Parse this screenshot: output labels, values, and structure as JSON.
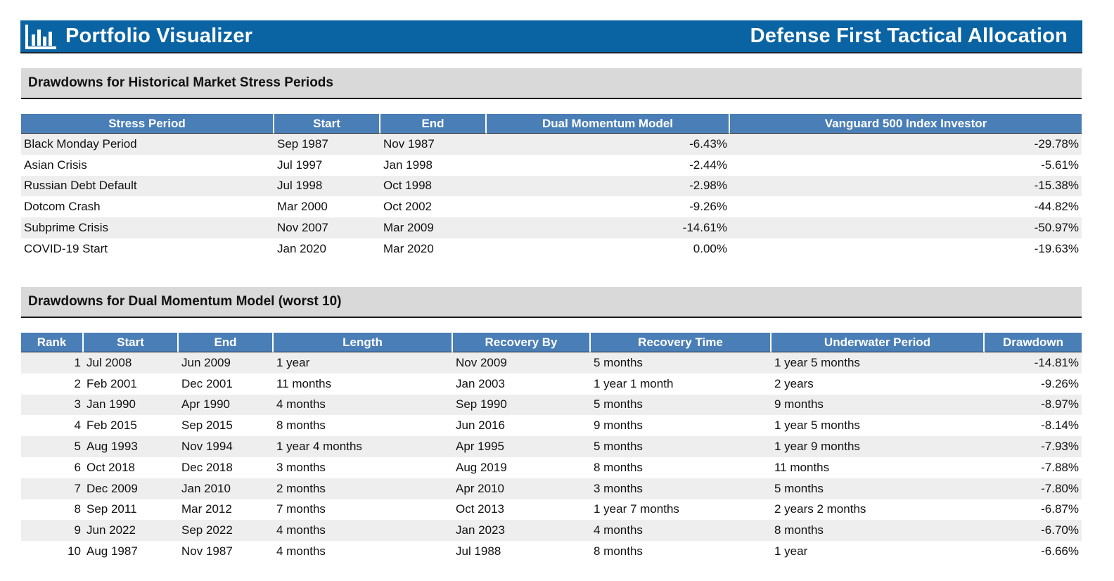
{
  "header": {
    "app_title": "Portfolio Visualizer",
    "page_title": "Defense First Tactical Allocation",
    "logo_icon": "bar-chart-icon",
    "brand_color": "#0a64a4"
  },
  "stress": {
    "heading": "Drawdowns for Historical Market Stress Periods",
    "columns": [
      "Stress Period",
      "Start",
      "End",
      "Dual Momentum Model",
      "Vanguard 500 Index Investor"
    ],
    "rows": [
      [
        "Black Monday Period",
        "Sep 1987",
        "Nov 1987",
        "-6.43%",
        "-29.78%"
      ],
      [
        "Asian Crisis",
        "Jul 1997",
        "Jan 1998",
        "-2.44%",
        "-5.61%"
      ],
      [
        "Russian Debt Default",
        "Jul 1998",
        "Oct 1998",
        "-2.98%",
        "-15.38%"
      ],
      [
        "Dotcom Crash",
        "Mar 2000",
        "Oct 2002",
        "-9.26%",
        "-44.82%"
      ],
      [
        "Subprime Crisis",
        "Nov 2007",
        "Mar 2009",
        "-14.61%",
        "-50.97%"
      ],
      [
        "COVID-19 Start",
        "Jan 2020",
        "Mar 2020",
        "0.00%",
        "-19.63%"
      ]
    ]
  },
  "drawdowns": {
    "heading": "Drawdowns for Dual Momentum Model (worst 10)",
    "columns": [
      "Rank",
      "Start",
      "End",
      "Length",
      "Recovery By",
      "Recovery Time",
      "Underwater Period",
      "Drawdown"
    ],
    "rows": [
      [
        "1",
        "Jul 2008",
        "Jun 2009",
        "1 year",
        "Nov 2009",
        "5 months",
        "1 year 5 months",
        "-14.81%"
      ],
      [
        "2",
        "Feb 2001",
        "Dec 2001",
        "11 months",
        "Jan 2003",
        "1 year 1 month",
        "2 years",
        "-9.26%"
      ],
      [
        "3",
        "Jan 1990",
        "Apr 1990",
        "4 months",
        "Sep 1990",
        "5 months",
        "9 months",
        "-8.97%"
      ],
      [
        "4",
        "Feb 2015",
        "Sep 2015",
        "8 months",
        "Jun 2016",
        "9 months",
        "1 year 5 months",
        "-8.14%"
      ],
      [
        "5",
        "Aug 1993",
        "Nov 1994",
        "1 year 4 months",
        "Apr 1995",
        "5 months",
        "1 year 9 months",
        "-7.93%"
      ],
      [
        "6",
        "Oct 2018",
        "Dec 2018",
        "3 months",
        "Aug 2019",
        "8 months",
        "11 months",
        "-7.88%"
      ],
      [
        "7",
        "Dec 2009",
        "Jan 2010",
        "2 months",
        "Apr 2010",
        "3 months",
        "5 months",
        "-7.80%"
      ],
      [
        "8",
        "Sep 2011",
        "Mar 2012",
        "7 months",
        "Oct 2013",
        "1 year 7 months",
        "2 years 2 months",
        "-6.87%"
      ],
      [
        "9",
        "Jun 2022",
        "Sep 2022",
        "4 months",
        "Jan 2023",
        "4 months",
        "8 months",
        "-6.70%"
      ],
      [
        "10",
        "Aug 1987",
        "Nov 1987",
        "4 months",
        "Jul 1988",
        "8 months",
        "1 year",
        "-6.66%"
      ]
    ]
  }
}
